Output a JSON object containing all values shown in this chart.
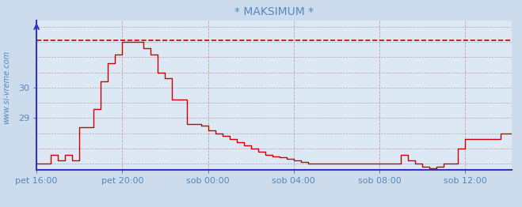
{
  "title": "* MAKSIMUM *",
  "bg_color": "#ccdcec",
  "plot_bg_color": "#dce8f4",
  "grid_color_h": "#c8a0a0",
  "grid_color_v": "#c8a0a0",
  "line_color": "#cc0000",
  "max_line_color": "#cc0000",
  "axis_color": "#3333bb",
  "text_color": "#5588bb",
  "watermark": "www.si-vreme.com",
  "ylim": [
    27.3,
    32.2
  ],
  "yticks": [
    29,
    30
  ],
  "max_value": 31.55,
  "x_labels": [
    "pet 16:00",
    "pet 20:00",
    "sob 00:00",
    "sob 04:00",
    "sob 08:00",
    "sob 12:00"
  ],
  "x_positions": [
    0,
    48,
    96,
    144,
    192,
    240
  ],
  "total_points": 252,
  "temperatures": [
    27.5,
    27.5,
    27.5,
    27.5,
    27.5,
    27.5,
    27.5,
    27.5,
    27.8,
    27.8,
    27.8,
    27.8,
    27.6,
    27.6,
    27.6,
    27.6,
    27.8,
    27.8,
    27.8,
    27.8,
    27.6,
    27.6,
    27.6,
    27.6,
    28.7,
    28.7,
    28.7,
    28.7,
    28.7,
    28.7,
    28.7,
    28.7,
    29.3,
    29.3,
    29.3,
    29.3,
    30.2,
    30.2,
    30.2,
    30.2,
    30.8,
    30.8,
    30.8,
    30.8,
    31.1,
    31.1,
    31.1,
    31.1,
    31.5,
    31.5,
    31.5,
    31.5,
    31.5,
    31.5,
    31.5,
    31.5,
    31.5,
    31.5,
    31.5,
    31.5,
    31.3,
    31.3,
    31.3,
    31.3,
    31.1,
    31.1,
    31.1,
    31.1,
    30.5,
    30.5,
    30.5,
    30.5,
    30.3,
    30.3,
    30.3,
    30.3,
    29.6,
    29.6,
    29.6,
    29.6,
    29.6,
    29.6,
    29.6,
    29.6,
    28.8,
    28.8,
    28.8,
    28.8,
    28.8,
    28.8,
    28.8,
    28.8,
    28.75,
    28.75,
    28.75,
    28.75,
    28.6,
    28.6,
    28.6,
    28.6,
    28.5,
    28.5,
    28.5,
    28.5,
    28.4,
    28.4,
    28.4,
    28.4,
    28.3,
    28.3,
    28.3,
    28.3,
    28.2,
    28.2,
    28.2,
    28.2,
    28.1,
    28.1,
    28.1,
    28.1,
    28.0,
    28.0,
    28.0,
    28.0,
    27.9,
    27.9,
    27.9,
    27.9,
    27.8,
    27.8,
    27.8,
    27.8,
    27.75,
    27.75,
    27.75,
    27.75,
    27.7,
    27.7,
    27.7,
    27.7,
    27.65,
    27.65,
    27.65,
    27.65,
    27.6,
    27.6,
    27.6,
    27.6,
    27.55,
    27.55,
    27.55,
    27.55,
    27.5,
    27.5,
    27.5,
    27.5,
    27.5,
    27.5,
    27.5,
    27.5,
    27.5,
    27.5,
    27.5,
    27.5,
    27.5,
    27.5,
    27.5,
    27.5,
    27.5,
    27.5,
    27.5,
    27.5,
    27.5,
    27.5,
    27.5,
    27.5,
    27.5,
    27.5,
    27.5,
    27.5,
    27.5,
    27.5,
    27.5,
    27.5,
    27.5,
    27.5,
    27.5,
    27.5,
    27.5,
    27.5,
    27.5,
    27.5,
    27.5,
    27.5,
    27.5,
    27.5,
    27.5,
    27.5,
    27.5,
    27.5,
    27.5,
    27.5,
    27.5,
    27.5,
    27.8,
    27.8,
    27.8,
    27.8,
    27.6,
    27.6,
    27.6,
    27.6,
    27.5,
    27.5,
    27.5,
    27.5,
    27.4,
    27.4,
    27.4,
    27.4,
    27.35,
    27.35,
    27.35,
    27.35,
    27.4,
    27.4,
    27.4,
    27.4,
    27.5,
    27.5,
    27.5,
    27.5,
    27.5,
    27.5,
    27.5,
    27.5,
    28.0,
    28.0,
    28.0,
    28.0,
    28.3,
    28.3,
    28.3,
    28.3,
    28.3,
    28.3,
    28.3,
    28.3,
    28.3,
    28.3,
    28.3,
    28.3,
    28.3,
    28.3,
    28.3,
    28.3,
    28.3,
    28.3,
    28.3,
    28.3,
    28.5,
    28.5,
    28.5,
    28.5,
    28.5,
    28.5,
    28.5
  ]
}
